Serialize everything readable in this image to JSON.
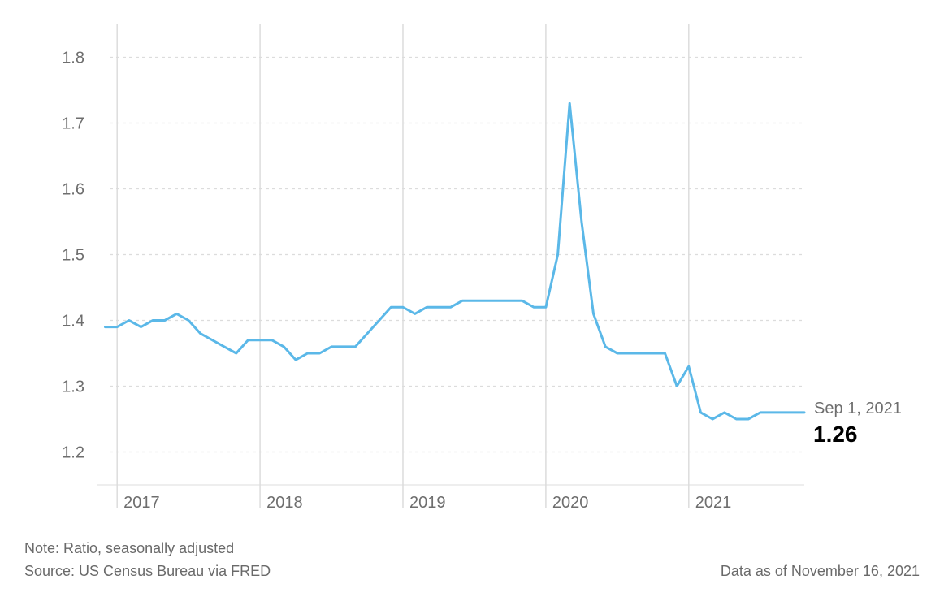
{
  "chart_data": {
    "type": "line",
    "title": "",
    "xlabel": "",
    "ylabel": "",
    "x_ticks": [
      "2017",
      "2018",
      "2019",
      "2020",
      "2021"
    ],
    "y_ticks": [
      "1.2",
      "1.3",
      "1.4",
      "1.5",
      "1.6",
      "1.7",
      "1.8"
    ],
    "ylim": [
      1.15,
      1.85
    ],
    "xlim": [
      "2016-11",
      "2021-10"
    ],
    "grid": {
      "horizontal": "dashed",
      "vertical": "solid"
    },
    "colors": {
      "line": "#5bb8e8",
      "grid": "#dcdcdc",
      "tick_text": "#6e6e6e"
    },
    "series": [
      {
        "x": [
          "2016-12",
          "2017-01",
          "2017-02",
          "2017-03",
          "2017-04",
          "2017-05",
          "2017-06",
          "2017-07",
          "2017-08",
          "2017-09",
          "2017-10",
          "2017-11",
          "2017-12",
          "2018-01",
          "2018-02",
          "2018-03",
          "2018-04",
          "2018-05",
          "2018-06",
          "2018-07",
          "2018-08",
          "2018-09",
          "2018-10",
          "2018-11",
          "2018-12",
          "2019-01",
          "2019-02",
          "2019-03",
          "2019-04",
          "2019-05",
          "2019-06",
          "2019-07",
          "2019-08",
          "2019-09",
          "2019-10",
          "2019-11",
          "2019-12",
          "2020-01",
          "2020-02",
          "2020-03",
          "2020-04",
          "2020-05",
          "2020-06",
          "2020-07",
          "2020-08",
          "2020-09",
          "2020-10",
          "2020-11",
          "2020-12",
          "2021-01",
          "2021-02",
          "2021-03",
          "2021-04",
          "2021-05",
          "2021-06",
          "2021-07",
          "2021-08",
          "2021-09"
        ],
        "values": [
          1.39,
          1.39,
          1.4,
          1.39,
          1.4,
          1.4,
          1.41,
          1.4,
          1.38,
          1.37,
          1.36,
          1.35,
          1.37,
          1.37,
          1.37,
          1.36,
          1.34,
          1.35,
          1.35,
          1.36,
          1.36,
          1.36,
          1.38,
          1.4,
          1.42,
          1.42,
          1.41,
          1.42,
          1.42,
          1.42,
          1.43,
          1.43,
          1.43,
          1.43,
          1.43,
          1.43,
          1.42,
          1.42,
          1.5,
          1.73,
          1.55,
          1.41,
          1.36,
          1.35,
          1.35,
          1.35,
          1.35,
          1.35,
          1.3,
          1.33,
          1.26,
          1.25,
          1.26,
          1.25,
          1.25,
          1.26,
          1.26,
          1.26
        ]
      }
    ],
    "last_point": {
      "date_label": "Sep 1, 2021",
      "value_label": "1.26"
    }
  },
  "footer": {
    "note": "Note: Ratio, seasonally adjusted",
    "source_prefix": "Source: ",
    "source_link": "US Census Bureau via FRED",
    "as_of": "Data as of November 16, 2021"
  }
}
